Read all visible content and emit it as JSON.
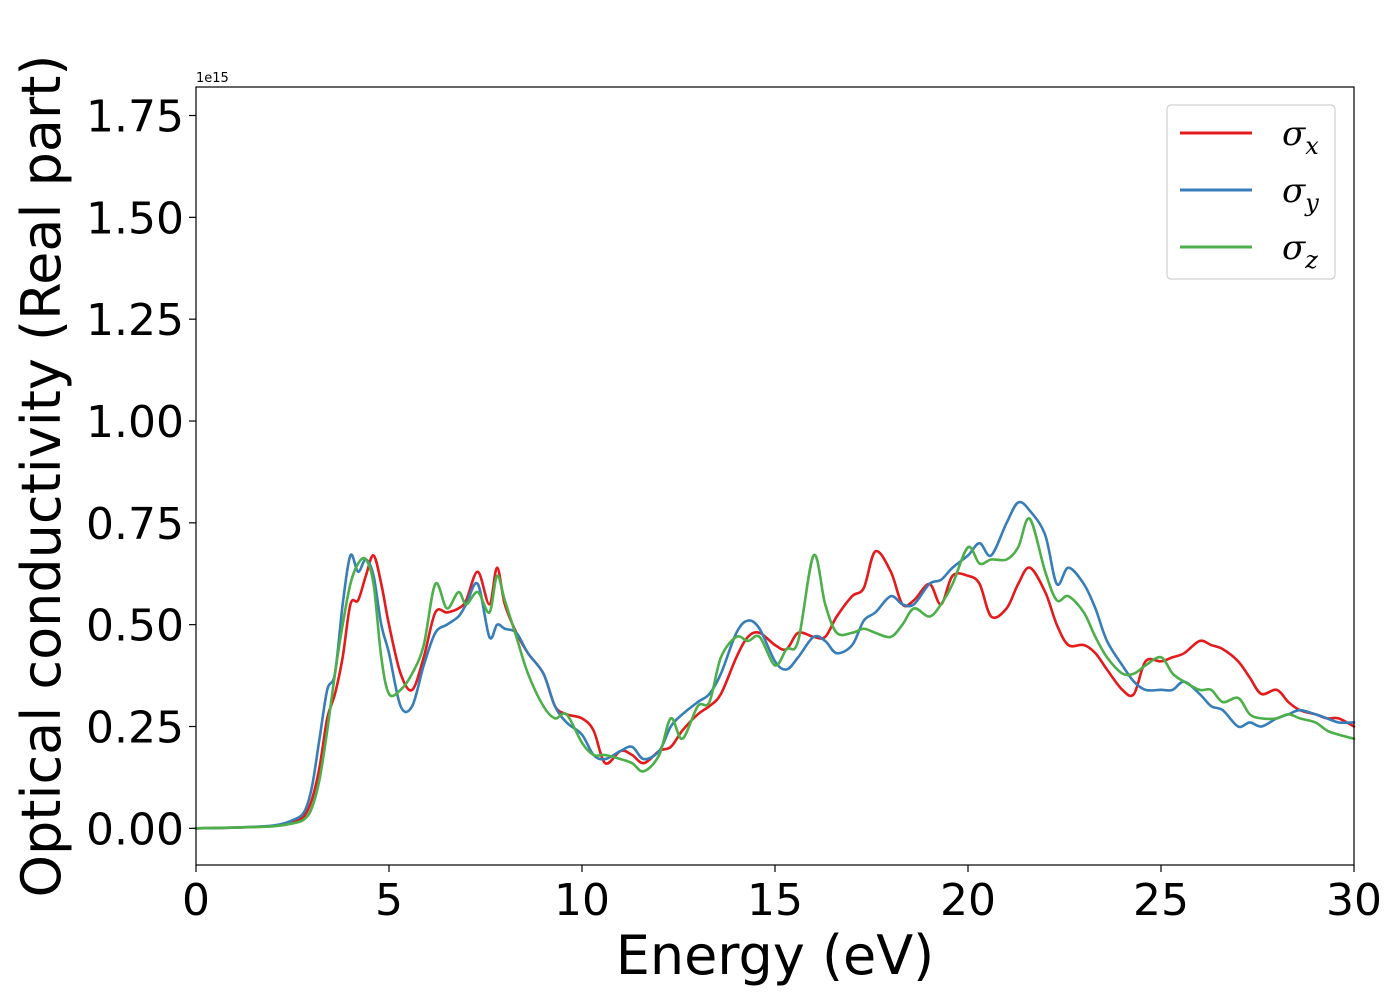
{
  "chart_data": {
    "type": "line",
    "xlabel": "Energy (eV)",
    "ylabel": "Optical conductivity (Real part)",
    "y_offset_text": "1e15",
    "xlim": [
      0,
      30
    ],
    "ylim": [
      -0.09,
      1.82
    ],
    "x_ticks": [
      0,
      5,
      10,
      15,
      20,
      25,
      30
    ],
    "x_tick_labels": [
      "0",
      "5",
      "10",
      "15",
      "20",
      "25",
      "30"
    ],
    "y_ticks": [
      0,
      0.25,
      0.5,
      0.75,
      1.0,
      1.25,
      1.5,
      1.75
    ],
    "y_tick_labels": [
      "0.00",
      "0.25",
      "0.50",
      "0.75",
      "1.00",
      "1.25",
      "1.50",
      "1.75"
    ],
    "grid": false,
    "legend_position": "top-right",
    "series": [
      {
        "name": "σ",
        "subscript": "x",
        "color": "#e41a1c",
        "x": [
          0,
          1,
          2,
          2.5,
          2.8,
          3.0,
          3.2,
          3.4,
          3.6,
          3.8,
          4.0,
          4.2,
          4.4,
          4.6,
          4.8,
          5.0,
          5.3,
          5.6,
          5.9,
          6.2,
          6.5,
          6.8,
          7.0,
          7.3,
          7.6,
          7.8,
          8.0,
          8.3,
          8.6,
          9.0,
          9.3,
          9.6,
          10.0,
          10.3,
          10.6,
          11.0,
          11.3,
          11.6,
          12.0,
          12.3,
          12.6,
          13.0,
          13.3,
          13.6,
          14.0,
          14.3,
          14.6,
          15.0,
          15.3,
          15.6,
          16.0,
          16.3,
          16.6,
          17.0,
          17.3,
          17.6,
          18.0,
          18.3,
          18.6,
          19.0,
          19.3,
          19.6,
          20.0,
          20.3,
          20.6,
          21.0,
          21.3,
          21.6,
          22.0,
          22.3,
          22.6,
          23.0,
          23.3,
          23.6,
          24.0,
          24.3,
          24.6,
          25.0,
          25.3,
          25.6,
          26.0,
          26.3,
          26.6,
          27.0,
          27.3,
          27.6,
          28.0,
          28.3,
          28.6,
          29.0,
          29.3,
          29.6,
          30.0
        ],
        "values": [
          0,
          0.002,
          0.006,
          0.015,
          0.03,
          0.07,
          0.15,
          0.27,
          0.33,
          0.42,
          0.55,
          0.56,
          0.62,
          0.67,
          0.6,
          0.5,
          0.38,
          0.34,
          0.42,
          0.53,
          0.53,
          0.54,
          0.56,
          0.63,
          0.55,
          0.64,
          0.55,
          0.48,
          0.43,
          0.38,
          0.3,
          0.28,
          0.27,
          0.24,
          0.16,
          0.19,
          0.18,
          0.16,
          0.19,
          0.2,
          0.24,
          0.28,
          0.3,
          0.33,
          0.42,
          0.47,
          0.48,
          0.45,
          0.44,
          0.48,
          0.47,
          0.47,
          0.52,
          0.57,
          0.59,
          0.68,
          0.63,
          0.55,
          0.56,
          0.6,
          0.55,
          0.62,
          0.62,
          0.6,
          0.52,
          0.54,
          0.6,
          0.64,
          0.58,
          0.5,
          0.45,
          0.45,
          0.43,
          0.39,
          0.34,
          0.33,
          0.41,
          0.41,
          0.42,
          0.43,
          0.46,
          0.45,
          0.44,
          0.41,
          0.37,
          0.33,
          0.34,
          0.31,
          0.29,
          0.28,
          0.27,
          0.27,
          0.25
        ]
      },
      {
        "name": "σ",
        "subscript": "y",
        "color": "#377eb8",
        "x": [
          0,
          1,
          2,
          2.5,
          2.8,
          3.0,
          3.2,
          3.4,
          3.6,
          3.8,
          4.0,
          4.2,
          4.4,
          4.6,
          4.8,
          5.0,
          5.3,
          5.6,
          5.9,
          6.2,
          6.5,
          6.8,
          7.0,
          7.3,
          7.6,
          7.8,
          8.0,
          8.3,
          8.6,
          9.0,
          9.3,
          9.6,
          10.0,
          10.3,
          10.6,
          11.0,
          11.3,
          11.6,
          12.0,
          12.3,
          12.6,
          13.0,
          13.3,
          13.6,
          14.0,
          14.3,
          14.6,
          15.0,
          15.3,
          15.6,
          16.0,
          16.3,
          16.6,
          17.0,
          17.3,
          17.6,
          18.0,
          18.3,
          18.6,
          19.0,
          19.3,
          19.6,
          20.0,
          20.3,
          20.6,
          21.0,
          21.3,
          21.6,
          22.0,
          22.3,
          22.6,
          23.0,
          23.3,
          23.6,
          24.0,
          24.3,
          24.6,
          25.0,
          25.3,
          25.6,
          26.0,
          26.3,
          26.6,
          27.0,
          27.3,
          27.6,
          28.0,
          28.3,
          28.6,
          29.0,
          29.3,
          29.6,
          30.0
        ],
        "values": [
          0,
          0.002,
          0.007,
          0.02,
          0.04,
          0.1,
          0.22,
          0.34,
          0.38,
          0.55,
          0.67,
          0.63,
          0.66,
          0.62,
          0.5,
          0.43,
          0.3,
          0.3,
          0.4,
          0.48,
          0.5,
          0.52,
          0.55,
          0.6,
          0.47,
          0.5,
          0.49,
          0.48,
          0.43,
          0.38,
          0.3,
          0.26,
          0.23,
          0.18,
          0.17,
          0.19,
          0.2,
          0.17,
          0.19,
          0.25,
          0.28,
          0.31,
          0.33,
          0.38,
          0.48,
          0.51,
          0.49,
          0.41,
          0.39,
          0.42,
          0.47,
          0.46,
          0.43,
          0.45,
          0.51,
          0.53,
          0.57,
          0.55,
          0.55,
          0.6,
          0.61,
          0.64,
          0.67,
          0.7,
          0.67,
          0.75,
          0.8,
          0.78,
          0.72,
          0.6,
          0.64,
          0.6,
          0.54,
          0.46,
          0.4,
          0.36,
          0.34,
          0.34,
          0.34,
          0.36,
          0.33,
          0.3,
          0.29,
          0.25,
          0.26,
          0.25,
          0.27,
          0.28,
          0.29,
          0.28,
          0.27,
          0.26,
          0.26
        ]
      },
      {
        "name": "σ",
        "subscript": "z",
        "color": "#4daf4a",
        "x": [
          0,
          1,
          2,
          2.5,
          2.8,
          3.0,
          3.2,
          3.4,
          3.6,
          3.8,
          4.0,
          4.2,
          4.4,
          4.6,
          4.8,
          5.0,
          5.3,
          5.6,
          5.9,
          6.2,
          6.5,
          6.8,
          7.0,
          7.3,
          7.6,
          7.8,
          8.0,
          8.3,
          8.6,
          9.0,
          9.3,
          9.6,
          10.0,
          10.3,
          10.6,
          11.0,
          11.3,
          11.6,
          12.0,
          12.3,
          12.6,
          13.0,
          13.3,
          13.6,
          14.0,
          14.3,
          14.6,
          15.0,
          15.3,
          15.6,
          16.0,
          16.3,
          16.6,
          17.0,
          17.3,
          17.6,
          18.0,
          18.3,
          18.6,
          19.0,
          19.3,
          19.6,
          20.0,
          20.3,
          20.6,
          21.0,
          21.3,
          21.6,
          22.0,
          22.3,
          22.6,
          23.0,
          23.3,
          23.6,
          24.0,
          24.3,
          24.6,
          25.0,
          25.3,
          25.6,
          26.0,
          26.3,
          26.6,
          27.0,
          27.3,
          27.6,
          28.0,
          28.3,
          28.6,
          29.0,
          29.3,
          29.6,
          30.0
        ],
        "values": [
          0,
          0.002,
          0.005,
          0.012,
          0.022,
          0.05,
          0.12,
          0.24,
          0.38,
          0.5,
          0.6,
          0.65,
          0.66,
          0.6,
          0.42,
          0.33,
          0.34,
          0.38,
          0.45,
          0.6,
          0.54,
          0.58,
          0.55,
          0.58,
          0.53,
          0.62,
          0.56,
          0.47,
          0.38,
          0.3,
          0.27,
          0.28,
          0.21,
          0.18,
          0.18,
          0.17,
          0.16,
          0.14,
          0.18,
          0.27,
          0.22,
          0.3,
          0.31,
          0.42,
          0.47,
          0.46,
          0.47,
          0.4,
          0.44,
          0.46,
          0.67,
          0.55,
          0.48,
          0.48,
          0.49,
          0.48,
          0.47,
          0.5,
          0.54,
          0.52,
          0.55,
          0.6,
          0.69,
          0.65,
          0.66,
          0.66,
          0.69,
          0.76,
          0.63,
          0.56,
          0.57,
          0.53,
          0.47,
          0.42,
          0.38,
          0.38,
          0.4,
          0.42,
          0.38,
          0.36,
          0.34,
          0.34,
          0.31,
          0.32,
          0.28,
          0.27,
          0.27,
          0.28,
          0.27,
          0.26,
          0.24,
          0.23,
          0.22
        ]
      }
    ]
  }
}
